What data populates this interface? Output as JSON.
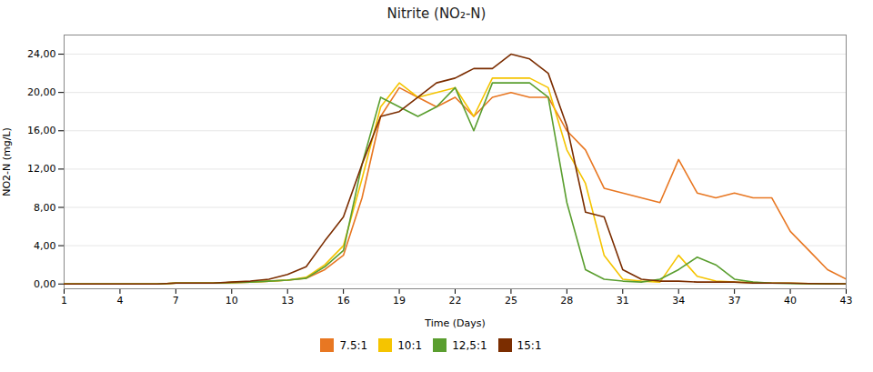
{
  "chart_data": {
    "type": "line",
    "title": "Nitrite (NO₂-N)",
    "xlabel": "Time (Days)",
    "ylabel": "NO2-N (mg/L)",
    "x": [
      1,
      2,
      3,
      4,
      5,
      6,
      7,
      8,
      9,
      10,
      11,
      12,
      13,
      14,
      15,
      16,
      17,
      18,
      19,
      20,
      21,
      22,
      23,
      24,
      25,
      26,
      27,
      28,
      29,
      30,
      31,
      32,
      33,
      34,
      35,
      36,
      37,
      38,
      39,
      40,
      41,
      42,
      43
    ],
    "series": [
      {
        "name": "7.5:1",
        "color": "#E87722",
        "values": [
          0.0,
          0.0,
          0.0,
          0.0,
          0.0,
          0.0,
          0.1,
          0.1,
          0.1,
          0.15,
          0.2,
          0.3,
          0.4,
          0.6,
          1.5,
          3.0,
          9.0,
          17.5,
          20.5,
          19.5,
          18.5,
          19.5,
          17.5,
          19.5,
          20.0,
          19.5,
          19.5,
          16.0,
          14.0,
          10.0,
          9.5,
          9.0,
          8.5,
          13.0,
          9.5,
          9.0,
          9.5,
          9.0,
          9.0,
          5.5,
          3.5,
          1.5,
          0.5
        ]
      },
      {
        "name": "10:1",
        "color": "#F5C400",
        "values": [
          0.0,
          0.0,
          0.0,
          0.0,
          0.0,
          0.0,
          0.1,
          0.1,
          0.1,
          0.15,
          0.2,
          0.3,
          0.4,
          0.7,
          2.0,
          4.0,
          11.0,
          18.5,
          21.0,
          19.5,
          20.0,
          20.5,
          17.5,
          21.5,
          21.5,
          21.5,
          20.5,
          14.0,
          10.5,
          3.0,
          0.5,
          0.3,
          0.2,
          3.0,
          0.8,
          0.3,
          0.2,
          0.15,
          0.1,
          0.1,
          0.05,
          0.05,
          0.0
        ]
      },
      {
        "name": "12,5:1",
        "color": "#5A9E2F",
        "values": [
          0.0,
          0.0,
          0.0,
          0.0,
          0.0,
          0.0,
          0.1,
          0.1,
          0.1,
          0.15,
          0.2,
          0.3,
          0.4,
          0.6,
          1.8,
          3.5,
          12.5,
          19.5,
          18.5,
          17.5,
          18.5,
          20.5,
          16.0,
          21.0,
          21.0,
          21.0,
          19.5,
          8.5,
          1.5,
          0.5,
          0.3,
          0.2,
          0.5,
          1.5,
          2.8,
          2.0,
          0.5,
          0.2,
          0.1,
          0.05,
          0.02,
          0.01,
          0.0
        ]
      },
      {
        "name": "15:1",
        "color": "#7B2D00",
        "values": [
          0.0,
          0.0,
          0.0,
          0.0,
          0.0,
          0.0,
          0.1,
          0.1,
          0.1,
          0.2,
          0.3,
          0.5,
          1.0,
          1.8,
          4.5,
          7.0,
          12.5,
          17.5,
          18.0,
          19.5,
          21.0,
          21.5,
          22.5,
          22.5,
          24.0,
          23.5,
          22.0,
          16.5,
          7.5,
          7.0,
          1.5,
          0.5,
          0.3,
          0.3,
          0.2,
          0.2,
          0.2,
          0.1,
          0.1,
          0.1,
          0.05,
          0.02,
          0.02
        ]
      }
    ],
    "xlim": [
      1,
      43
    ],
    "ylim": [
      -0.5,
      26
    ],
    "xticks": [
      1,
      4,
      7,
      10,
      13,
      16,
      19,
      22,
      25,
      28,
      31,
      34,
      37,
      40,
      43
    ],
    "yticks": [
      {
        "value": 0.0,
        "label": "0,00"
      },
      {
        "value": 4.0,
        "label": "4,00"
      },
      {
        "value": 8.0,
        "label": "8,00"
      },
      {
        "value": 12.0,
        "label": "12,00"
      },
      {
        "value": 16.0,
        "label": "16,00"
      },
      {
        "value": 20.0,
        "label": "20,00"
      },
      {
        "value": 24.0,
        "label": "24,00"
      }
    ],
    "grid": "y",
    "legend": "bottom"
  }
}
